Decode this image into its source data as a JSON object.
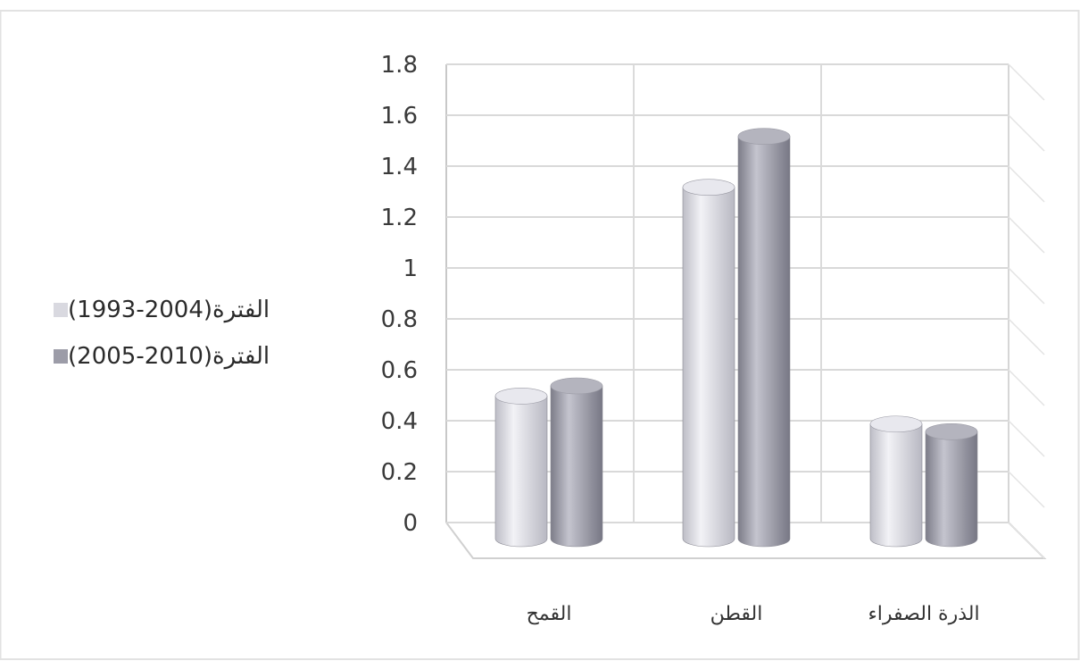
{
  "chart_data": {
    "type": "bar",
    "categories": [
      "القمح",
      "القطن",
      "الذرة الصفراء"
    ],
    "series": [
      {
        "name": "الفترة(2004-1993)",
        "values": [
          0.56,
          1.38,
          0.45
        ],
        "color": "#d9d9e0"
      },
      {
        "name": "الفترة(2010-2005)",
        "values": [
          0.6,
          1.58,
          0.42
        ],
        "color": "#9c9ca8"
      }
    ],
    "yticks": [
      "0",
      "0.2",
      "0.4",
      "0.6",
      "0.8",
      "1",
      "1.2",
      "1.4",
      "1.6",
      "1.8"
    ],
    "ylim": [
      0,
      1.8
    ],
    "grid": true,
    "legend_position": "left"
  }
}
